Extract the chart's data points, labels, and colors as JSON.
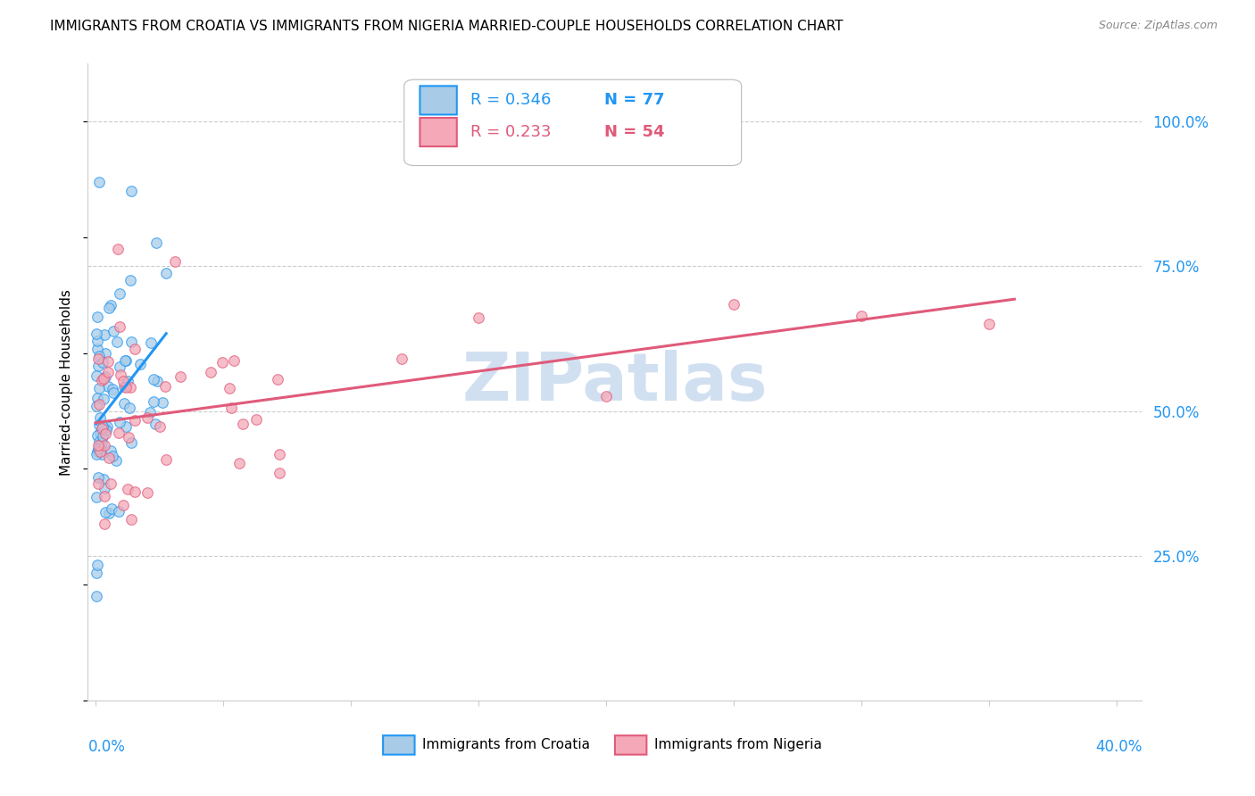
{
  "title": "IMMIGRANTS FROM CROATIA VS IMMIGRANTS FROM NIGERIA MARRIED-COUPLE HOUSEHOLDS CORRELATION CHART",
  "source": "Source: ZipAtlas.com",
  "ylabel": "Married-couple Households",
  "legend_r1": "R = 0.346",
  "legend_n1": "N = 77",
  "legend_r2": "R = 0.233",
  "legend_n2": "N = 54",
  "label1": "Immigrants from Croatia",
  "label2": "Immigrants from Nigeria",
  "color1": "#a8cce8",
  "color2": "#f4a8b8",
  "line_color1": "#2196F3",
  "line_color2": "#e05a7a",
  "tick_color": "#2196F3",
  "watermark": "ZIPatlas",
  "watermark_color": "#ccddf0"
}
